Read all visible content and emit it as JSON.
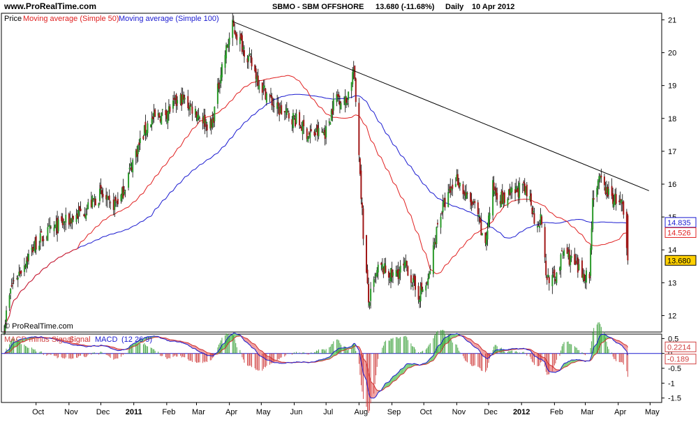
{
  "header": {
    "site": "www.ProRealTime.com",
    "ticker": "SBMO - SBM OFFSHORE",
    "last": "13.680 (-11.68%)",
    "period": "Daily",
    "date": "10 Apr 2012"
  },
  "chart_data": [
    {
      "type": "candlestick",
      "legend": {
        "price": "Price",
        "ma50": "Moving average (Simple 50)",
        "ma100": "Moving average (Simple 100)"
      },
      "watermark": "© ProRealTime.com",
      "ylim": [
        11.5,
        21.2
      ],
      "yticks": [
        "12",
        "13",
        "14",
        "15",
        "16",
        "17",
        "18",
        "19",
        "20",
        "21"
      ],
      "xticks": [
        "Oct",
        "Nov",
        "Dec",
        "2011",
        "Feb",
        "Mar",
        "Apr",
        "May",
        "Jun",
        "Jul",
        "Aug",
        "Sep",
        "Oct",
        "Nov",
        "Dec",
        "2012",
        "Feb",
        "Mar",
        "Apr",
        "May"
      ],
      "last_values": {
        "ma100": "14.835",
        "ma50": "14.526",
        "close": "13.680"
      },
      "colors": {
        "ma50": "#e02020",
        "ma100": "#1a1ad0",
        "up": "#2a9a2a",
        "down": "#a01818",
        "trendline": "#000000",
        "close_badge": "#ffd000"
      },
      "trendline": {
        "from": [
          "2011-04-04",
          20.95
        ],
        "to": [
          "2012-04-30",
          15.8
        ]
      },
      "ohlc_anchors": [
        [
          "2010-09-01",
          11.7
        ],
        [
          "2010-09-08",
          12.9
        ],
        [
          "2010-09-20",
          13.6
        ],
        [
          "2010-10-01",
          14.2
        ],
        [
          "2010-10-15",
          14.6
        ],
        [
          "2010-11-01",
          14.9
        ],
        [
          "2010-11-15",
          15.2
        ],
        [
          "2010-12-01",
          15.7
        ],
        [
          "2010-12-10",
          15.3
        ],
        [
          "2010-12-20",
          15.6
        ],
        [
          "2011-01-01",
          16.8
        ],
        [
          "2011-01-15",
          17.9
        ],
        [
          "2011-02-01",
          18.2
        ],
        [
          "2011-02-15",
          18.6
        ],
        [
          "2011-03-01",
          18.2
        ],
        [
          "2011-03-15",
          17.7
        ],
        [
          "2011-03-25",
          19.6
        ],
        [
          "2011-04-04",
          20.8
        ],
        [
          "2011-04-15",
          20.1
        ],
        [
          "2011-05-01",
          19.0
        ],
        [
          "2011-05-15",
          18.3
        ],
        [
          "2011-06-01",
          18.0
        ],
        [
          "2011-06-15",
          17.5
        ],
        [
          "2011-07-01",
          17.6
        ],
        [
          "2011-07-10",
          18.7
        ],
        [
          "2011-07-20",
          18.5
        ],
        [
          "2011-07-27",
          19.5
        ],
        [
          "2011-08-01",
          17.0
        ],
        [
          "2011-08-05",
          14.5
        ],
        [
          "2011-08-10",
          12.4
        ],
        [
          "2011-08-20",
          13.5
        ],
        [
          "2011-09-01",
          13.2
        ],
        [
          "2011-09-15",
          13.5
        ],
        [
          "2011-09-25",
          12.6
        ],
        [
          "2011-10-05",
          13.0
        ],
        [
          "2011-10-15",
          15.0
        ],
        [
          "2011-10-25",
          15.7
        ],
        [
          "2011-11-01",
          16.2
        ],
        [
          "2011-11-10",
          15.6
        ],
        [
          "2011-11-20",
          15.2
        ],
        [
          "2011-11-27",
          14.0
        ],
        [
          "2011-12-05",
          15.9
        ],
        [
          "2011-12-15",
          15.5
        ],
        [
          "2012-01-01",
          15.9
        ],
        [
          "2012-01-10",
          15.5
        ],
        [
          "2012-01-13",
          14.9
        ],
        [
          "2012-01-20",
          14.9
        ],
        [
          "2012-01-24",
          13.2
        ],
        [
          "2012-02-01",
          13.1
        ],
        [
          "2012-02-10",
          14.0
        ],
        [
          "2012-02-25",
          13.3
        ],
        [
          "2012-03-05",
          13.2
        ],
        [
          "2012-03-08",
          15.6
        ],
        [
          "2012-03-15",
          16.1
        ],
        [
          "2012-03-25",
          15.6
        ],
        [
          "2012-04-01",
          15.5
        ],
        [
          "2012-04-05",
          15.3
        ],
        [
          "2012-04-06",
          14.9
        ],
        [
          "2012-04-10",
          13.68
        ]
      ]
    },
    {
      "type": "macd",
      "legend": {
        "hist": "MACD minus Signal",
        "signal": "Signal",
        "macd": "MACD",
        "params": "(12 26 9)"
      },
      "ylim": [
        -1.65,
        0.65
      ],
      "yticks": [
        "0.5",
        "0",
        "-0.5",
        "-1",
        "-1.5"
      ],
      "last_values": {
        "macd": "0.2214",
        "hist": "-0.189"
      },
      "colors": {
        "hist": "#d04040",
        "signal": "#d03030",
        "macd": "#1a1ad0",
        "fill_up": "#7ed07e",
        "fill_down": "#f0a0a0",
        "zero": "#1a1ad0"
      }
    }
  ]
}
